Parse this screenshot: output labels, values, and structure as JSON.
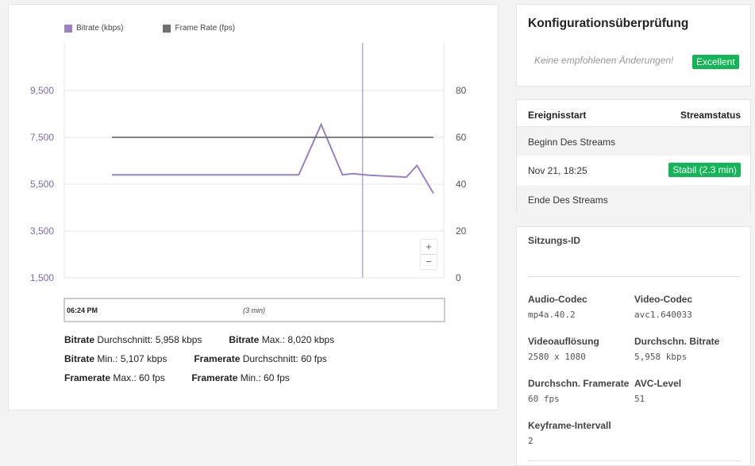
{
  "legend": {
    "bitrate": "Bitrate (kbps)",
    "framerate": "Frame Rate (fps)"
  },
  "colors": {
    "bitrate": "#9a80c8",
    "framerate": "#707070",
    "accent_green": "#12b656"
  },
  "chart_data": {
    "type": "line",
    "x_axis": {
      "min": 0,
      "max": 3,
      "unit": "min"
    },
    "y_left": {
      "ticks": [
        "9,500",
        "7,500",
        "5,500",
        "3,500",
        "1,500"
      ],
      "values": [
        9500,
        7500,
        5500,
        3500,
        1500
      ],
      "range": [
        1500,
        9500
      ]
    },
    "y_right": {
      "ticks": [
        "80",
        "60",
        "40",
        "20",
        "0"
      ],
      "values": [
        80,
        60,
        40,
        20,
        0
      ],
      "range": [
        0,
        80
      ]
    },
    "series": [
      {
        "name": "Bitrate (kbps)",
        "axis": "left",
        "x": [
          0.0,
          1.58,
          1.77,
          1.95,
          2.04,
          2.18,
          2.49,
          2.58,
          2.72
        ],
        "y": [
          5900,
          5900,
          8050,
          5900,
          5950,
          5880,
          5800,
          6300,
          5107
        ]
      },
      {
        "name": "Frame Rate (fps)",
        "axis": "right",
        "x": [
          0,
          2.72
        ],
        "y": [
          60,
          60
        ]
      }
    ],
    "cursor_x": 2.12,
    "grid": true
  },
  "zoom": {
    "in": "+",
    "out": "−"
  },
  "timeline": {
    "start": "06:24 PM",
    "duration": "(3 min)"
  },
  "stats": {
    "row1": [
      {
        "label": "Bitrate",
        "text": " Durchschnitt: 5,958 kbps"
      },
      {
        "label": "Bitrate",
        "text": " Max.: 8,020 kbps"
      }
    ],
    "row2": [
      {
        "label": "Bitrate",
        "text": " Min.: 5,107 kbps"
      },
      {
        "label": "Framerate",
        "text": " Durchschnitt: 60 fps"
      }
    ],
    "row3": [
      {
        "label": "Framerate",
        "text": " Max.: 60 fps"
      },
      {
        "label": "Framerate",
        "text": " Min.: 60 fps"
      }
    ]
  },
  "config": {
    "title": "Konfigurationsüberprüfung",
    "message": "Keine empfohlenen Änderungen!",
    "badge": "Excellent"
  },
  "events": {
    "col1": "Ereignisstart",
    "col2": "Streamstatus",
    "rows": [
      {
        "text": "Beginn Des Streams"
      },
      {
        "text": "Nov 21, 18:25",
        "badge": "Stabil (2.3 min)"
      },
      {
        "text": "Ende Des Streams"
      }
    ]
  },
  "session": {
    "id_label": "Sitzungs-ID",
    "fields": [
      {
        "label": "Audio-Codec",
        "value": "mp4a.40.2"
      },
      {
        "label": "Video-Codec",
        "value": "avc1.640033"
      },
      {
        "label": "Videoauflösung",
        "value": "2580 x 1080"
      },
      {
        "label": "Durchschn. Bitrate",
        "value": "5,958 kbps"
      },
      {
        "label": "Durchschn. Framerate",
        "value": "60 fps"
      },
      {
        "label": "AVC-Level",
        "value": "51"
      },
      {
        "label": "Keyframe-Intervall",
        "value": "2"
      }
    ]
  }
}
